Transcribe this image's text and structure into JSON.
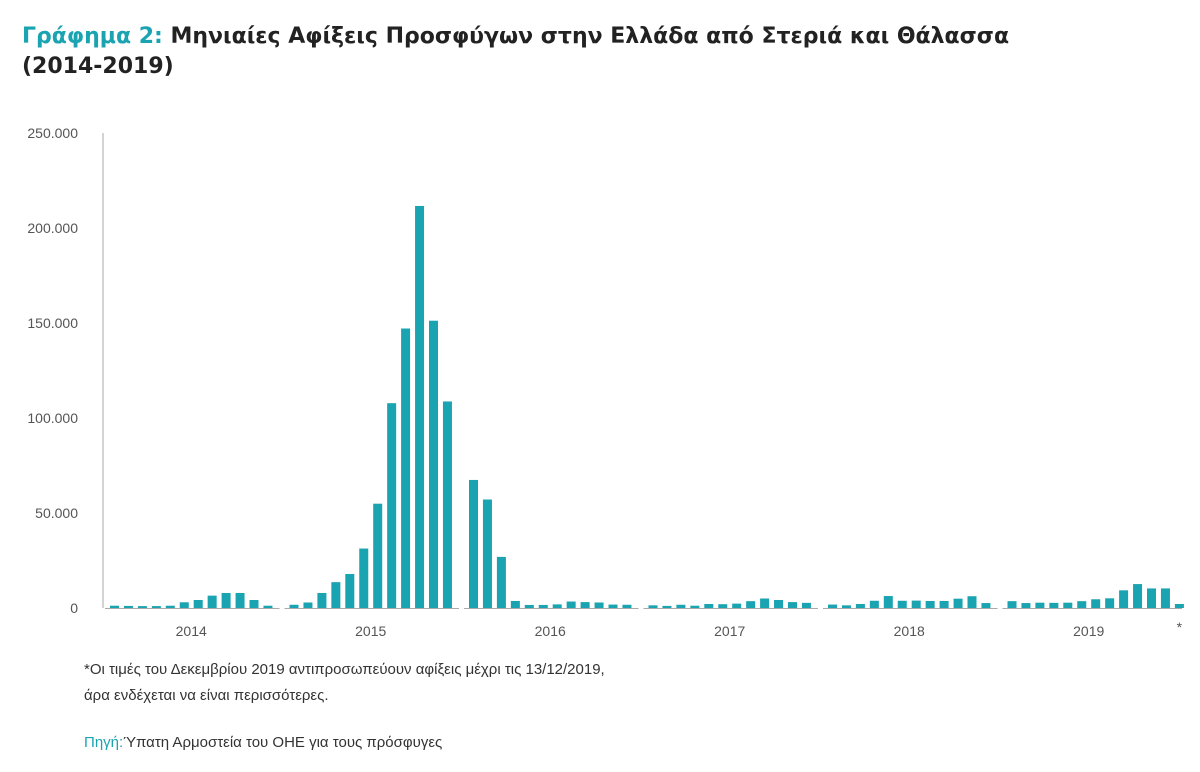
{
  "title": {
    "prefix": "Γράφημα 2:",
    "text": "Μηνιαίες Αφίξεις Προσφύγων στην Ελλάδα από Στεριά και Θάλασσα",
    "line2": "(2014-2019)"
  },
  "colors": {
    "bar": "#1aa3b0",
    "accent": "#1aa3b0",
    "axis": "#aaaaaa",
    "text": "#333333"
  },
  "chart_data": {
    "type": "bar",
    "title": "Μηνιαίες Αφίξεις Προσφύγων στην Ελλάδα από Στεριά και Θάλασσα (2014-2019)",
    "xlabel": "",
    "ylabel": "",
    "ylim": [
      0,
      250000
    ],
    "yticks": [
      0,
      50000,
      100000,
      150000,
      200000,
      250000
    ],
    "ytick_labels": [
      "0",
      "50.000",
      "100.000",
      "150.000",
      "200.000",
      "250.000"
    ],
    "grid": false,
    "year_labels": [
      "2014",
      "2015",
      "2016",
      "2017",
      "2018",
      "2019"
    ],
    "footnote_marker": "*",
    "series": [
      {
        "values": [
          [
            1200,
            1100,
            1000,
            1000,
            1200,
            3000,
            4200,
            6500,
            7900,
            7900,
            4200,
            1200
          ],
          [
            1700,
            2900,
            7900,
            13600,
            17900,
            31300,
            54900,
            107800,
            147100,
            211600,
            151200,
            108700
          ],
          [
            67400,
            57100,
            26900,
            3700,
            1600,
            1600,
            1900,
            3400,
            3100,
            2900,
            1800,
            1700
          ],
          [
            1400,
            1100,
            1700,
            1200,
            2100,
            2000,
            2300,
            3600,
            5000,
            4200,
            3100,
            2700
          ],
          [
            1800,
            1400,
            2100,
            3800,
            6300,
            3800,
            3900,
            3700,
            3700,
            4900,
            6200,
            2600
          ],
          [
            3600,
            2600,
            2800,
            2700,
            2800,
            3600,
            4600,
            5100,
            9300,
            12600,
            10300,
            10300
          ]
        ]
      }
    ],
    "extra_last_bar": 2100
  },
  "footnote": {
    "line1": "*Οι τιμές του Δεκεμβρίου 2019 αντιπροσωπεύουν αφίξεις μέχρι τις 13/12/2019,",
    "line2": "άρα ενδέχεται να είναι περισσότερες."
  },
  "source": {
    "label": "Πηγή:",
    "text": "Ύπατη Αρμοστεία του ΟΗΕ για τους πρόσφυγες"
  }
}
